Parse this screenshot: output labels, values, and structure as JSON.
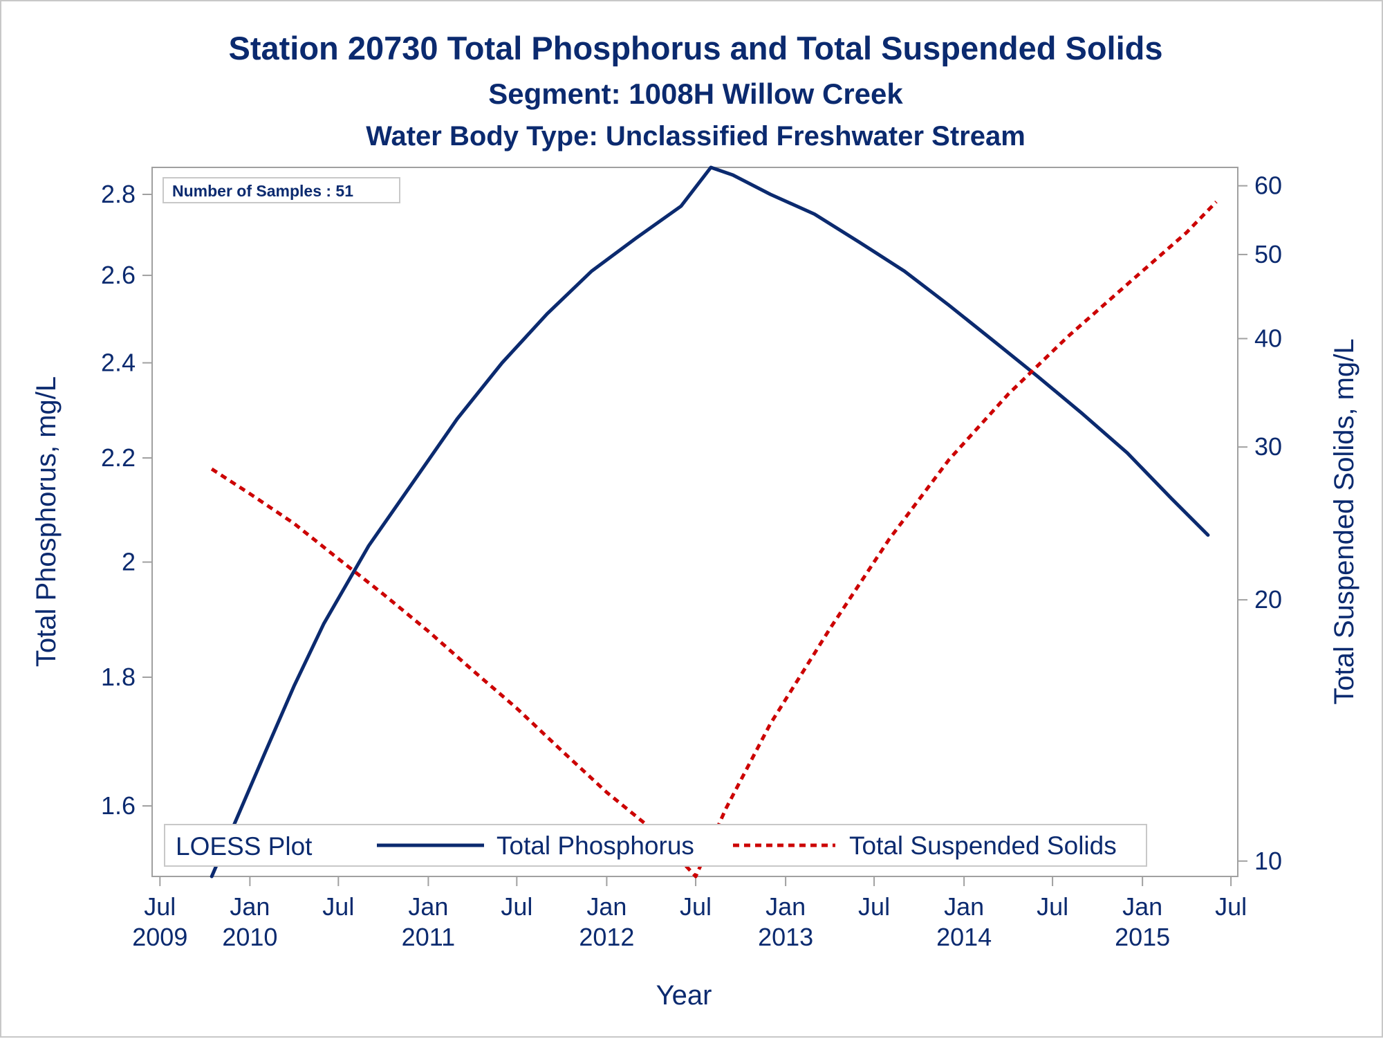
{
  "chart_data": {
    "type": "line",
    "title": "Station 20730  Total Phosphorus and Total Suspended Solids",
    "subtitle": "Segment: 1008H  Willow Creek",
    "subtitle2": "Water Body Type: Unclassified Freshwater Stream",
    "xlabel": "Year",
    "ylabel": "Total Phosphorus, mg/L",
    "y2label": "Total Suspended Solids, mg/L",
    "annotation": "Number of Samples : 51",
    "legend_title": "LOESS Plot",
    "legend_position": "bottom-inside",
    "grid": false,
    "y_scale": "log",
    "y2_scale": "log",
    "xlim": [
      "2009-06-15",
      "2015-07-15"
    ],
    "ylim": [
      1.5,
      2.87
    ],
    "y2lim": [
      9.6,
      63
    ],
    "x_ticks": [
      {
        "date": "2009-07-01",
        "line1": "Jul",
        "line2": "2009"
      },
      {
        "date": "2010-01-01",
        "line1": "Jan",
        "line2": "2010"
      },
      {
        "date": "2010-07-01",
        "line1": "Jul",
        "line2": ""
      },
      {
        "date": "2011-01-01",
        "line1": "Jan",
        "line2": "2011"
      },
      {
        "date": "2011-07-01",
        "line1": "Jul",
        "line2": ""
      },
      {
        "date": "2012-01-01",
        "line1": "Jan",
        "line2": "2012"
      },
      {
        "date": "2012-07-01",
        "line1": "Jul",
        "line2": ""
      },
      {
        "date": "2013-01-01",
        "line1": "Jan",
        "line2": "2013"
      },
      {
        "date": "2013-07-01",
        "line1": "Jul",
        "line2": ""
      },
      {
        "date": "2014-01-01",
        "line1": "Jan",
        "line2": "2014"
      },
      {
        "date": "2014-07-01",
        "line1": "Jul",
        "line2": ""
      },
      {
        "date": "2015-01-01",
        "line1": "Jan",
        "line2": "2015"
      },
      {
        "date": "2015-07-01",
        "line1": "Jul",
        "line2": ""
      }
    ],
    "y_ticks": [
      {
        "value": 1.6,
        "label": "1.6"
      },
      {
        "value": 1.8,
        "label": "1.8"
      },
      {
        "value": 2.0,
        "label": "2"
      },
      {
        "value": 2.2,
        "label": "2.2"
      },
      {
        "value": 2.4,
        "label": "2.4"
      },
      {
        "value": 2.6,
        "label": "2.6"
      },
      {
        "value": 2.8,
        "label": "2.8"
      }
    ],
    "y2_ticks": [
      {
        "value": 10,
        "label": "10"
      },
      {
        "value": 20,
        "label": "20"
      },
      {
        "value": 30,
        "label": "30"
      },
      {
        "value": 40,
        "label": "40"
      },
      {
        "value": 50,
        "label": "50"
      },
      {
        "value": 60,
        "label": "60"
      }
    ],
    "series": [
      {
        "name": "Total Phosphorus",
        "axis": "left",
        "color": "#0b2a6f",
        "style": "solid",
        "points": [
          [
            "2009-10-15",
            1.5
          ],
          [
            "2009-12-01",
            1.575
          ],
          [
            "2010-02-01",
            1.68
          ],
          [
            "2010-04-01",
            1.785
          ],
          [
            "2010-06-01",
            1.89
          ],
          [
            "2010-09-01",
            2.03
          ],
          [
            "2010-11-15",
            2.13
          ],
          [
            "2011-03-01",
            2.28
          ],
          [
            "2011-06-01",
            2.4
          ],
          [
            "2011-09-01",
            2.51
          ],
          [
            "2011-12-01",
            2.61
          ],
          [
            "2012-03-01",
            2.69
          ],
          [
            "2012-06-01",
            2.77
          ],
          [
            "2012-08-01",
            2.87
          ],
          [
            "2012-09-15",
            2.85
          ],
          [
            "2012-12-01",
            2.8
          ],
          [
            "2013-03-01",
            2.75
          ],
          [
            "2013-06-01",
            2.68
          ],
          [
            "2013-09-01",
            2.61
          ],
          [
            "2013-12-01",
            2.53
          ],
          [
            "2014-03-01",
            2.45
          ],
          [
            "2014-06-01",
            2.37
          ],
          [
            "2014-09-01",
            2.29
          ],
          [
            "2014-12-01",
            2.21
          ],
          [
            "2015-03-01",
            2.12
          ],
          [
            "2015-05-15",
            2.05
          ]
        ]
      },
      {
        "name": "Total Suspended Solids",
        "axis": "right",
        "color": "#cc0000",
        "style": "dashed",
        "points": [
          [
            "2009-10-15",
            28.3
          ],
          [
            "2010-01-01",
            26.5
          ],
          [
            "2010-04-01",
            24.5
          ],
          [
            "2010-07-01",
            22.3
          ],
          [
            "2010-10-01",
            20.3
          ],
          [
            "2011-01-01",
            18.4
          ],
          [
            "2011-04-01",
            16.6
          ],
          [
            "2011-07-01",
            15.0
          ],
          [
            "2011-10-01",
            13.4
          ],
          [
            "2012-01-01",
            12.0
          ],
          [
            "2012-04-01",
            10.9
          ],
          [
            "2012-07-01",
            9.6
          ],
          [
            "2012-09-01",
            11.5
          ],
          [
            "2012-12-01",
            14.4
          ],
          [
            "2013-04-01",
            18.5
          ],
          [
            "2013-08-01",
            23.5
          ],
          [
            "2013-12-01",
            29.0
          ],
          [
            "2014-04-01",
            34.5
          ],
          [
            "2014-08-01",
            40.2
          ],
          [
            "2014-12-01",
            46.2
          ],
          [
            "2015-04-01",
            53.0
          ],
          [
            "2015-06-01",
            57.5
          ]
        ]
      }
    ]
  }
}
